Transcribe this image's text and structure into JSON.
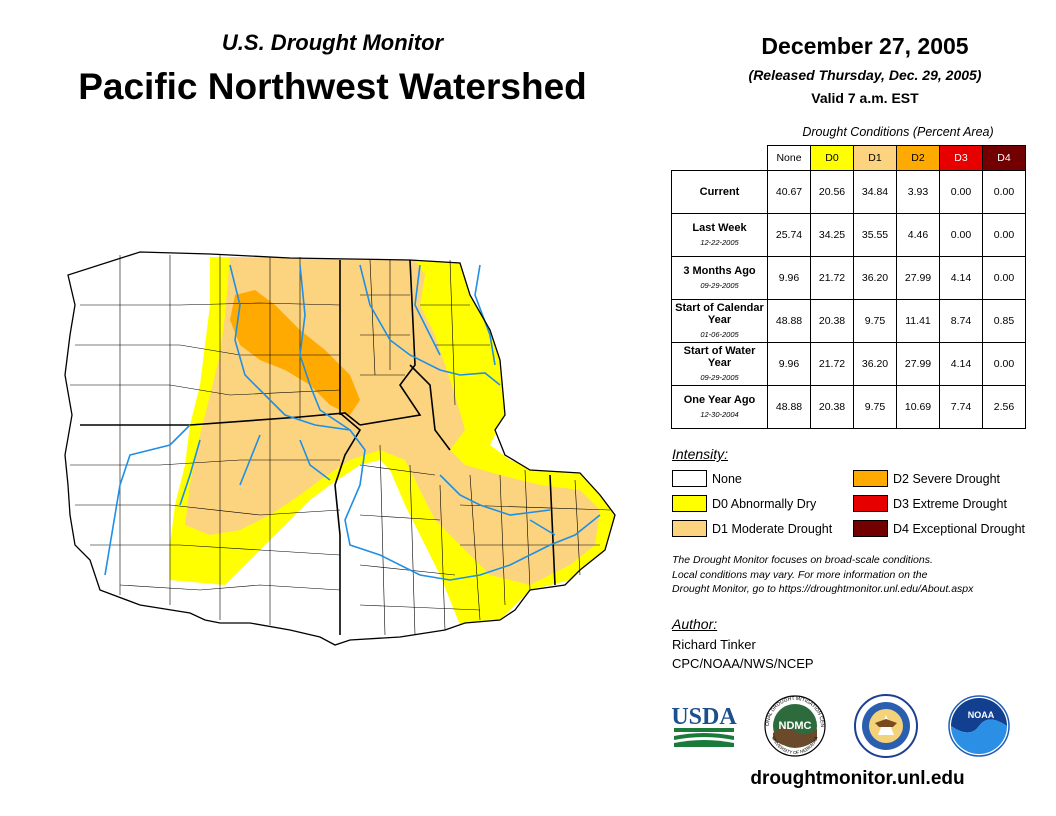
{
  "header": {
    "subtitle": "U.S. Drought Monitor",
    "title": "Pacific Northwest Watershed",
    "date": "December 27, 2005",
    "released": "(Released Thursday, Dec. 29, 2005)",
    "valid": "Valid 7 a.m. EST"
  },
  "table": {
    "caption": "Drought Conditions (Percent Area)",
    "columns": [
      "None",
      "D0",
      "D1",
      "D2",
      "D3",
      "D4"
    ],
    "column_colors": [
      "#ffffff",
      "#ffff00",
      "#fcd37f",
      "#ffaa00",
      "#e60000",
      "#730000"
    ],
    "column_text_colors": [
      "#000000",
      "#000000",
      "#000000",
      "#000000",
      "#ffffff",
      "#ffffff"
    ],
    "rows": [
      {
        "label": "Current",
        "date": "",
        "values": [
          "40.67",
          "20.56",
          "34.84",
          "3.93",
          "0.00",
          "0.00"
        ]
      },
      {
        "label": "Last Week",
        "date": "12-22-2005",
        "values": [
          "25.74",
          "34.25",
          "35.55",
          "4.46",
          "0.00",
          "0.00"
        ]
      },
      {
        "label": "3 Months Ago",
        "date": "09-29-2005",
        "values": [
          "9.96",
          "21.72",
          "36.20",
          "27.99",
          "4.14",
          "0.00"
        ]
      },
      {
        "label": "Start of Calendar Year",
        "date": "01-06-2005",
        "values": [
          "48.88",
          "20.38",
          "9.75",
          "11.41",
          "8.74",
          "0.85"
        ]
      },
      {
        "label": "Start of Water Year",
        "date": "09-29-2005",
        "values": [
          "9.96",
          "21.72",
          "36.20",
          "27.99",
          "4.14",
          "0.00"
        ]
      },
      {
        "label": "One Year Ago",
        "date": "12-30-2004",
        "values": [
          "48.88",
          "20.38",
          "9.75",
          "10.69",
          "7.74",
          "2.56"
        ]
      }
    ]
  },
  "legend": {
    "title": "Intensity:",
    "items": [
      {
        "label": "None",
        "color": "#ffffff"
      },
      {
        "label": "D0 Abnormally Dry",
        "color": "#ffff00"
      },
      {
        "label": "D1 Moderate Drought",
        "color": "#fcd37f"
      },
      {
        "label": "D2 Severe Drought",
        "color": "#ffaa00"
      },
      {
        "label": "D3 Extreme Drought",
        "color": "#e60000"
      },
      {
        "label": "D4 Exceptional Drought",
        "color": "#730000"
      }
    ]
  },
  "note": {
    "line1": "The Drought Monitor focuses on broad-scale conditions.",
    "line2": "Local conditions may vary. For more information on the",
    "line3": "Drought Monitor, go to https://droughtmonitor.unl.edu/About.aspx"
  },
  "author": {
    "title": "Author:",
    "name": "Richard Tinker",
    "org": "CPC/NOAA/NWS/NCEP"
  },
  "logos": {
    "usda": "USDA",
    "ndmc": "NDMC",
    "noaa": "NOAA",
    "ndmc_ring": "NATIONAL DROUGHT MITIGATION CENTER",
    "ndmc_ring_bottom": "UNIVERSITY OF NEBRASKA"
  },
  "website": "droughtmonitor.unl.edu",
  "colors": {
    "river": "#1f8fe6",
    "border": "#000000",
    "county": "#000000"
  }
}
